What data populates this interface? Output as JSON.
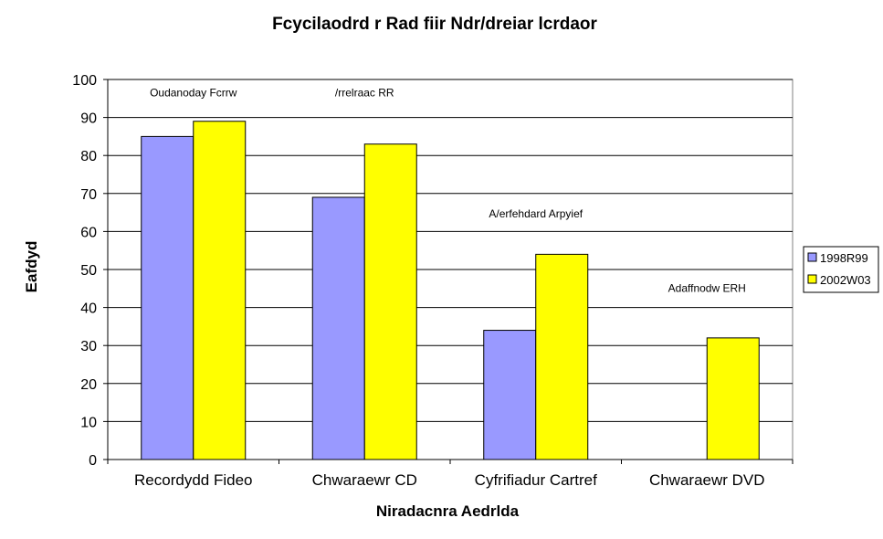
{
  "chart_data": {
    "type": "bar",
    "title": "Fcycilaodrd r Rad fiir Ndr/dreiar lcrdaor",
    "xlabel": "Niradacnra Aedrlda",
    "ylabel": "Eafdyd",
    "categories": [
      "Recordydd Fideo",
      "Chwaraewr CD",
      "Cyfrifiadur Cartref",
      "Chwaraewr DVD"
    ],
    "series": [
      {
        "name": "1998R99",
        "color": "#9999ff",
        "values": [
          85,
          69,
          34,
          null
        ]
      },
      {
        "name": "2002W03",
        "color": "#ffff00",
        "values": [
          89,
          83,
          54,
          32
        ]
      }
    ],
    "ylim": [
      0,
      100
    ],
    "yticks": [
      0,
      10,
      20,
      30,
      40,
      50,
      60,
      70,
      80,
      90,
      100
    ],
    "grid": true,
    "legend": "right",
    "annotations": [
      {
        "text": "Oudanoday Fcrrw",
        "category": "Recordydd Fideo",
        "y": 95.5
      },
      {
        "text": "/rrelraac RR",
        "category": "Chwaraewr CD",
        "y": 95.5
      },
      {
        "text": "A/erfehdard Arpyief",
        "category": "Cyfrifiadur Cartref",
        "y": 63.7
      },
      {
        "text": "Adaffnodw ERH",
        "category": "Chwaraewr DVD",
        "y": 44.1
      }
    ]
  }
}
